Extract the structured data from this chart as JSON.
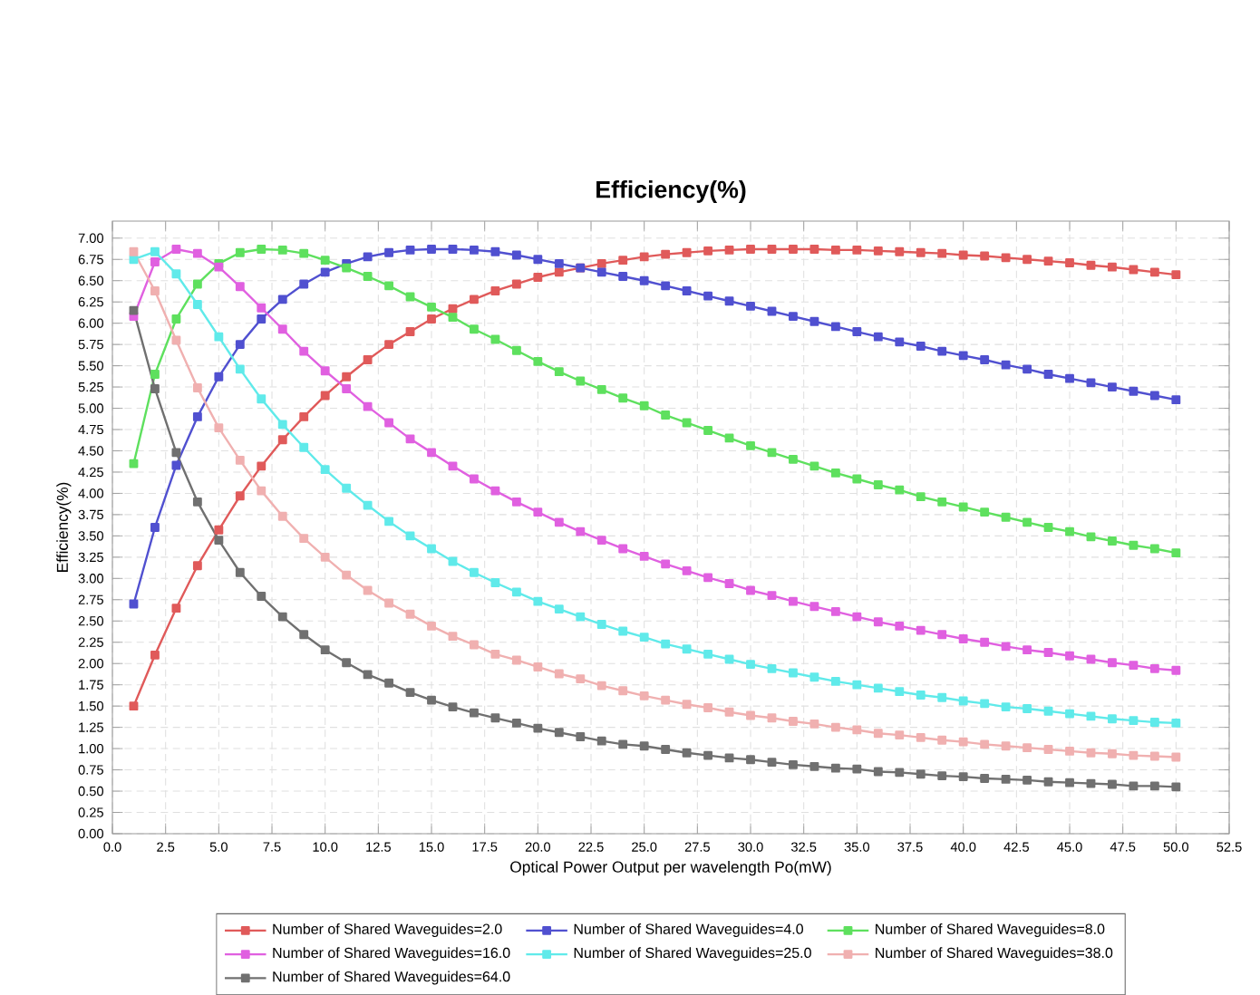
{
  "chart_data": {
    "type": "line",
    "title": "Efficiency(%)",
    "xlabel": "Optical Power Output per wavelength Po(mW)",
    "ylabel": "Efficiency(%)",
    "x": [
      1,
      2,
      3,
      4,
      5,
      6,
      7,
      8,
      9,
      10,
      11,
      12,
      13,
      14,
      15,
      16,
      17,
      18,
      19,
      20,
      21,
      22,
      23,
      24,
      25,
      26,
      27,
      28,
      29,
      30,
      31,
      32,
      33,
      34,
      35,
      36,
      37,
      38,
      39,
      40,
      41,
      42,
      43,
      44,
      45,
      46,
      47,
      48,
      49,
      50
    ],
    "xlim": [
      0,
      52.5
    ],
    "ylim": [
      0,
      7.2
    ],
    "xticks": [
      {
        "value": 0,
        "label": "0.0"
      },
      {
        "value": 2.5,
        "label": "2.5"
      },
      {
        "value": 5,
        "label": "5.0"
      },
      {
        "value": 7.5,
        "label": "7.5"
      },
      {
        "value": 10,
        "label": "10.0"
      },
      {
        "value": 12.5,
        "label": "12.5"
      },
      {
        "value": 15,
        "label": "15.0"
      },
      {
        "value": 17.5,
        "label": "17.5"
      },
      {
        "value": 20,
        "label": "20.0"
      },
      {
        "value": 22.5,
        "label": "22.5"
      },
      {
        "value": 25,
        "label": "25.0"
      },
      {
        "value": 27.5,
        "label": "27.5"
      },
      {
        "value": 30,
        "label": "30.0"
      },
      {
        "value": 32.5,
        "label": "32.5"
      },
      {
        "value": 35,
        "label": "35.0"
      },
      {
        "value": 37.5,
        "label": "37.5"
      },
      {
        "value": 40,
        "label": "40.0"
      },
      {
        "value": 42.5,
        "label": "42.5"
      },
      {
        "value": 45,
        "label": "45.0"
      },
      {
        "value": 47.5,
        "label": "47.5"
      },
      {
        "value": 50,
        "label": "50.0"
      },
      {
        "value": 52.5,
        "label": "52.5"
      }
    ],
    "yticks": [
      {
        "value": 0,
        "label": "0.00"
      },
      {
        "value": 0.25,
        "label": "0.25"
      },
      {
        "value": 0.5,
        "label": "0.50"
      },
      {
        "value": 0.75,
        "label": "0.75"
      },
      {
        "value": 1,
        "label": "1.00"
      },
      {
        "value": 1.25,
        "label": "1.25"
      },
      {
        "value": 1.5,
        "label": "1.50"
      },
      {
        "value": 1.75,
        "label": "1.75"
      },
      {
        "value": 2,
        "label": "2.00"
      },
      {
        "value": 2.25,
        "label": "2.25"
      },
      {
        "value": 2.5,
        "label": "2.50"
      },
      {
        "value": 2.75,
        "label": "2.75"
      },
      {
        "value": 3,
        "label": "3.00"
      },
      {
        "value": 3.25,
        "label": "3.25"
      },
      {
        "value": 3.5,
        "label": "3.50"
      },
      {
        "value": 3.75,
        "label": "3.75"
      },
      {
        "value": 4,
        "label": "4.00"
      },
      {
        "value": 4.25,
        "label": "4.25"
      },
      {
        "value": 4.5,
        "label": "4.50"
      },
      {
        "value": 4.75,
        "label": "4.75"
      },
      {
        "value": 5,
        "label": "5.00"
      },
      {
        "value": 5.25,
        "label": "5.25"
      },
      {
        "value": 5.5,
        "label": "5.50"
      },
      {
        "value": 5.75,
        "label": "5.75"
      },
      {
        "value": 6,
        "label": "6.00"
      },
      {
        "value": 6.25,
        "label": "6.25"
      },
      {
        "value": 6.5,
        "label": "6.50"
      },
      {
        "value": 6.75,
        "label": "6.75"
      },
      {
        "value": 7,
        "label": "7.00"
      }
    ],
    "grid": true,
    "legend": "bottom",
    "marker": "square",
    "line_style": "solid",
    "series": [
      {
        "name": "Number of Shared Waveguides=2.0",
        "color": "#e05a5a",
        "values": [
          1.5,
          2.1,
          2.65,
          3.15,
          3.57,
          3.97,
          4.32,
          4.63,
          4.9,
          5.15,
          5.37,
          5.57,
          5.75,
          5.9,
          6.05,
          6.17,
          6.28,
          6.38,
          6.46,
          6.54,
          6.6,
          6.65,
          6.7,
          6.74,
          6.78,
          6.81,
          6.83,
          6.85,
          6.86,
          6.87,
          6.87,
          6.87,
          6.87,
          6.86,
          6.86,
          6.85,
          6.84,
          6.83,
          6.82,
          6.8,
          6.79,
          6.77,
          6.75,
          6.73,
          6.71,
          6.68,
          6.66,
          6.63,
          6.6,
          6.57
        ]
      },
      {
        "name": "Number of Shared Waveguides=4.0",
        "color": "#5050d0",
        "values": [
          2.7,
          3.6,
          4.33,
          4.9,
          5.37,
          5.75,
          6.05,
          6.28,
          6.46,
          6.6,
          6.7,
          6.78,
          6.83,
          6.86,
          6.87,
          6.87,
          6.86,
          6.84,
          6.8,
          6.75,
          6.7,
          6.65,
          6.6,
          6.55,
          6.5,
          6.44,
          6.38,
          6.32,
          6.26,
          6.2,
          6.14,
          6.08,
          6.02,
          5.96,
          5.9,
          5.84,
          5.78,
          5.73,
          5.67,
          5.62,
          5.57,
          5.51,
          5.46,
          5.4,
          5.35,
          5.3,
          5.25,
          5.2,
          5.15,
          5.1
        ]
      },
      {
        "name": "Number of Shared Waveguides=8.0",
        "color": "#5ee05e",
        "values": [
          4.35,
          5.4,
          6.05,
          6.46,
          6.7,
          6.83,
          6.87,
          6.86,
          6.82,
          6.74,
          6.65,
          6.55,
          6.44,
          6.31,
          6.19,
          6.07,
          5.93,
          5.81,
          5.68,
          5.55,
          5.43,
          5.32,
          5.22,
          5.12,
          5.03,
          4.92,
          4.83,
          4.74,
          4.65,
          4.56,
          4.48,
          4.4,
          4.32,
          4.24,
          4.17,
          4.1,
          4.04,
          3.96,
          3.9,
          3.84,
          3.78,
          3.72,
          3.66,
          3.6,
          3.55,
          3.49,
          3.44,
          3.39,
          3.35,
          3.3
        ]
      },
      {
        "name": "Number of Shared Waveguides=16.0",
        "color": "#e060e0",
        "values": [
          6.08,
          6.72,
          6.87,
          6.82,
          6.66,
          6.43,
          6.18,
          5.93,
          5.67,
          5.44,
          5.23,
          5.02,
          4.83,
          4.64,
          4.48,
          4.32,
          4.17,
          4.03,
          3.9,
          3.78,
          3.66,
          3.55,
          3.45,
          3.35,
          3.26,
          3.17,
          3.09,
          3.01,
          2.94,
          2.86,
          2.8,
          2.73,
          2.67,
          2.61,
          2.55,
          2.49,
          2.44,
          2.39,
          2.34,
          2.29,
          2.25,
          2.2,
          2.16,
          2.13,
          2.09,
          2.05,
          2.01,
          1.98,
          1.94,
          1.92
        ]
      },
      {
        "name": "Number of Shared Waveguides=25.0",
        "color": "#60eaea",
        "values": [
          6.75,
          6.84,
          6.58,
          6.22,
          5.84,
          5.46,
          5.11,
          4.81,
          4.54,
          4.28,
          4.06,
          3.86,
          3.67,
          3.5,
          3.35,
          3.2,
          3.07,
          2.95,
          2.84,
          2.73,
          2.64,
          2.55,
          2.46,
          2.38,
          2.31,
          2.23,
          2.17,
          2.11,
          2.05,
          1.99,
          1.94,
          1.89,
          1.84,
          1.79,
          1.75,
          1.71,
          1.67,
          1.63,
          1.6,
          1.56,
          1.53,
          1.49,
          1.47,
          1.44,
          1.41,
          1.38,
          1.35,
          1.33,
          1.31,
          1.3
        ]
      },
      {
        "name": "Number of Shared Waveguides=38.0",
        "color": "#f0b0b0",
        "values": [
          6.84,
          6.38,
          5.8,
          5.24,
          4.77,
          4.39,
          4.03,
          3.73,
          3.47,
          3.25,
          3.04,
          2.86,
          2.71,
          2.58,
          2.44,
          2.32,
          2.22,
          2.11,
          2.04,
          1.96,
          1.88,
          1.82,
          1.74,
          1.68,
          1.62,
          1.57,
          1.52,
          1.48,
          1.43,
          1.39,
          1.36,
          1.32,
          1.29,
          1.25,
          1.22,
          1.18,
          1.16,
          1.13,
          1.1,
          1.08,
          1.05,
          1.03,
          1.01,
          0.99,
          0.97,
          0.95,
          0.94,
          0.92,
          0.91,
          0.9
        ]
      },
      {
        "name": "Number of Shared Waveguides=64.0",
        "color": "#707070",
        "values": [
          6.15,
          5.23,
          4.48,
          3.9,
          3.45,
          3.07,
          2.79,
          2.55,
          2.34,
          2.16,
          2.01,
          1.87,
          1.77,
          1.66,
          1.57,
          1.49,
          1.42,
          1.36,
          1.3,
          1.24,
          1.19,
          1.14,
          1.09,
          1.05,
          1.03,
          0.99,
          0.95,
          0.92,
          0.89,
          0.87,
          0.84,
          0.81,
          0.79,
          0.77,
          0.76,
          0.73,
          0.72,
          0.7,
          0.68,
          0.67,
          0.65,
          0.64,
          0.63,
          0.61,
          0.6,
          0.59,
          0.58,
          0.56,
          0.56,
          0.55
        ]
      }
    ]
  }
}
